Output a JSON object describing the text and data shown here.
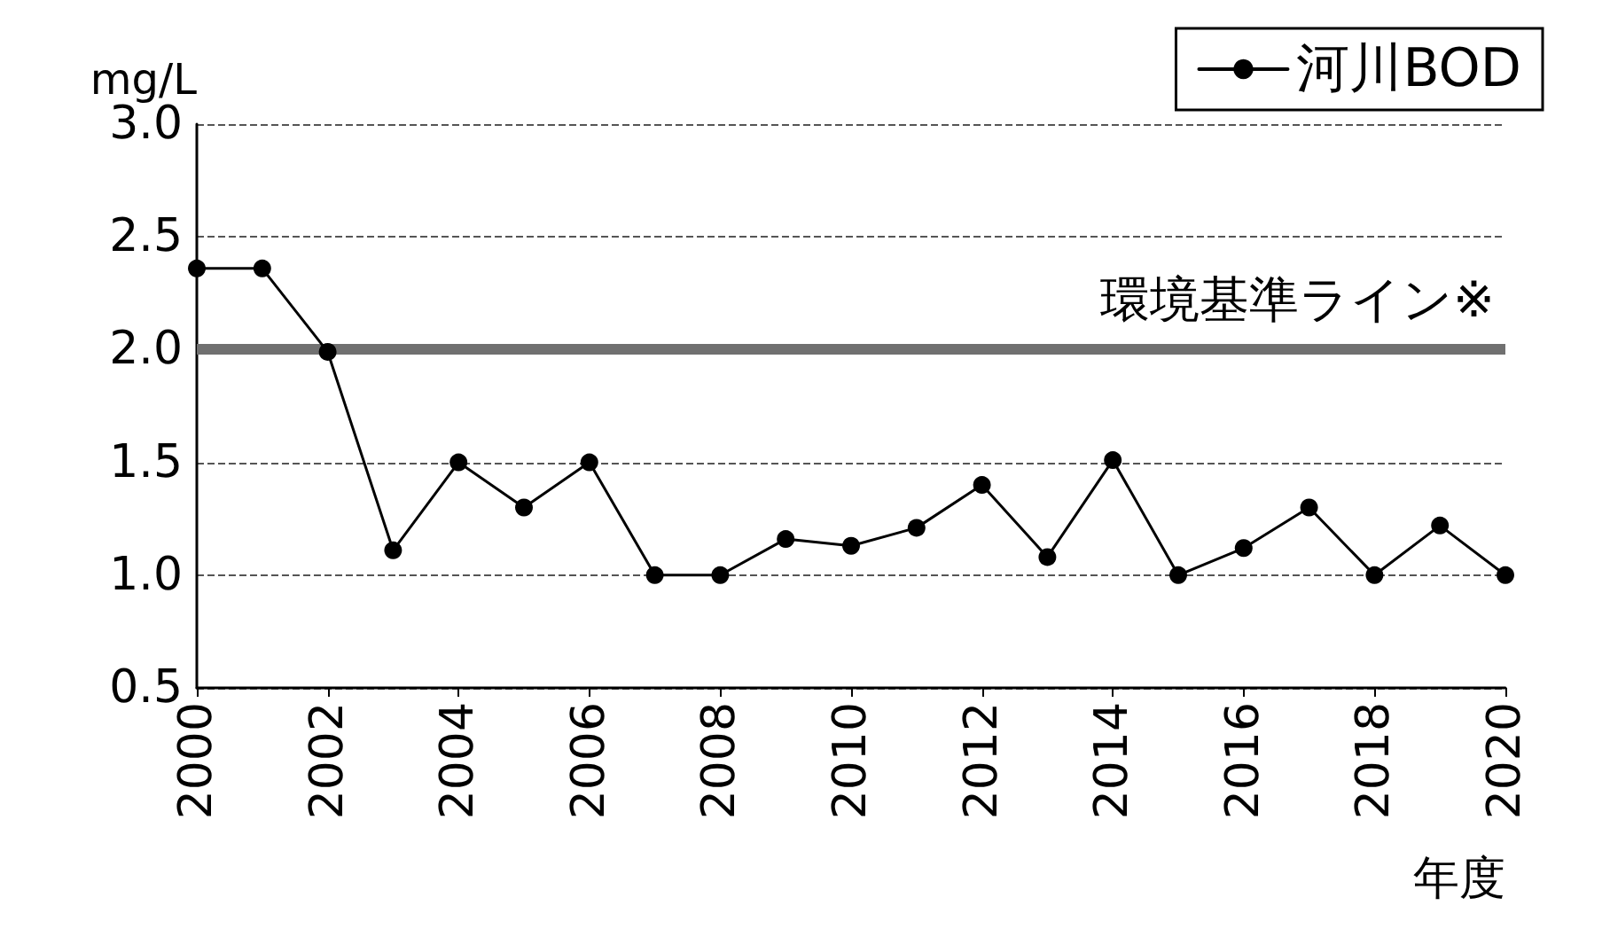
{
  "chart_data": {
    "type": "line",
    "xlabel": "年度",
    "ylabel": "mg/L",
    "x": [
      2000,
      2001,
      2002,
      2003,
      2004,
      2005,
      2006,
      2007,
      2008,
      2009,
      2010,
      2011,
      2012,
      2013,
      2014,
      2015,
      2016,
      2017,
      2018,
      2019,
      2020
    ],
    "series": [
      {
        "name": "河川BOD",
        "color": "#000000",
        "values": [
          2.36,
          2.36,
          1.99,
          1.11,
          1.5,
          1.3,
          1.5,
          1.0,
          1.0,
          1.16,
          1.13,
          1.21,
          1.4,
          1.08,
          1.51,
          1.0,
          1.12,
          1.3,
          1.0,
          1.22,
          1.0
        ]
      }
    ],
    "xlim": [
      2000,
      2020
    ],
    "xticks": [
      2000,
      2002,
      2004,
      2006,
      2008,
      2010,
      2012,
      2014,
      2016,
      2018,
      2020
    ],
    "ylim": [
      0.5,
      3.0
    ],
    "yticks": [
      {
        "value": 0.5,
        "label": "0.5"
      },
      {
        "value": 1.0,
        "label": "1.0"
      },
      {
        "value": 1.5,
        "label": "1.5"
      },
      {
        "value": 2.0,
        "label": "2.0"
      },
      {
        "value": 2.5,
        "label": "2.5"
      },
      {
        "value": 3.0,
        "label": "3.0"
      }
    ],
    "ref_lines": [
      {
        "axis": "y",
        "value": 2.0,
        "label": "環境基準ライン※",
        "color": "#707070"
      }
    ],
    "grid": "y",
    "legend": "top right",
    "marker": "circle",
    "line_style": "solid"
  }
}
